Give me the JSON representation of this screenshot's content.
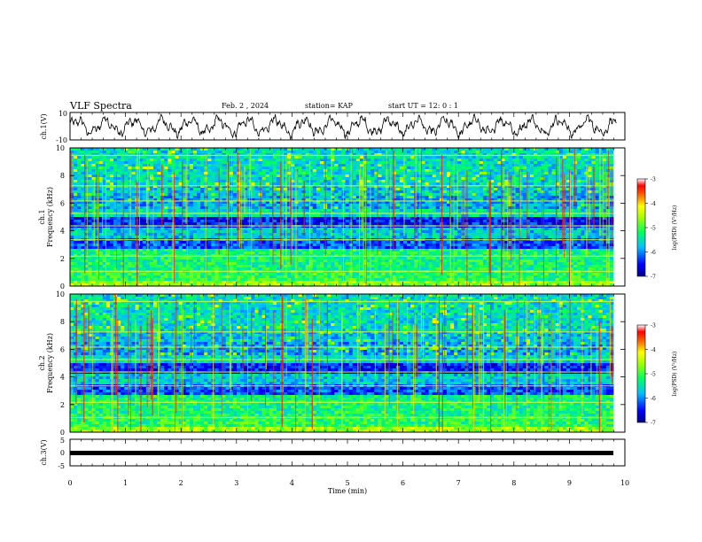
{
  "header": {
    "title": "VLF Spectra",
    "date": "Feb. 2 , 2024",
    "station": "station= KAP",
    "start": "start  UT =   12: 0  : 1"
  },
  "chart_data": [
    {
      "type": "line",
      "ylabel": "ch.1(V)",
      "ylim": [
        -10,
        10
      ],
      "yticks": [
        "10",
        "-10"
      ],
      "xlim": [
        0,
        10
      ],
      "description_values": {
        "x": [
          0,
          0.5,
          1,
          1.5,
          2,
          2.5,
          3,
          3.5,
          4,
          4.5,
          5,
          5.5,
          6,
          6.5,
          7,
          7.5,
          8,
          8.5,
          9,
          9.5,
          9.8
        ],
        "y": [
          3,
          -4,
          2,
          -3,
          4,
          -5,
          3,
          -4,
          5,
          -6,
          2,
          -4,
          3,
          -2,
          4,
          -3,
          5,
          -2,
          4,
          -6,
          -2
        ]
      }
    },
    {
      "type": "heatmap",
      "ylabel": "ch.1\nFrequency  (kHz)",
      "ylim": [
        0,
        10
      ],
      "yticks": [
        "0",
        "2",
        "4",
        "6",
        "8",
        "10"
      ],
      "xlim": [
        0,
        9.85
      ],
      "colorbar": {
        "label": "log(PSD) (V²/Hz)",
        "range": [
          -7,
          -3
        ],
        "ticks": [
          "-3",
          "-4",
          "-5",
          "-6",
          "-7"
        ]
      },
      "bands_khz": [
        {
          "from": 0,
          "to": 1.2,
          "level": "green-yellow"
        },
        {
          "from": 1.2,
          "to": 2.6,
          "level": "green"
        },
        {
          "from": 2.6,
          "to": 3.4,
          "level": "blue"
        },
        {
          "from": 3.4,
          "to": 4.2,
          "level": "cyan"
        },
        {
          "from": 4.2,
          "to": 5.0,
          "level": "blue"
        },
        {
          "from": 5.0,
          "to": 6.5,
          "level": "cyan-blue"
        },
        {
          "from": 6.5,
          "to": 10,
          "level": "mixed-blue-green"
        }
      ]
    },
    {
      "type": "heatmap",
      "ylabel": "ch.2\nFrequency  (kHz)",
      "ylim": [
        0,
        10
      ],
      "yticks": [
        "0",
        "2",
        "4",
        "6",
        "8",
        "10"
      ],
      "xlim": [
        0,
        9.85
      ],
      "colorbar": {
        "label": "log(PSD) (V²/Hz)",
        "range": [
          -7,
          -3
        ],
        "ticks": [
          "-3",
          "-4",
          "-5",
          "-6",
          "-7"
        ]
      }
    },
    {
      "type": "line",
      "ylabel": "ch.3(V)",
      "ylim": [
        -5,
        5
      ],
      "yticks": [
        "5",
        "0",
        "-5"
      ],
      "xlim": [
        0,
        10
      ],
      "constant_value": 0
    }
  ],
  "xaxis": {
    "label": "Time  (min)",
    "ticks": [
      "0",
      "1",
      "2",
      "3",
      "4",
      "5",
      "6",
      "7",
      "8",
      "9",
      "10"
    ]
  },
  "colors": {
    "spectrogram_ramp": [
      "#00008b",
      "#0000ff",
      "#0080ff",
      "#00ffff",
      "#00ff80",
      "#80ff00",
      "#ffff00",
      "#ff8000",
      "#ff0000",
      "#ffffff"
    ],
    "trace": "#000000"
  }
}
